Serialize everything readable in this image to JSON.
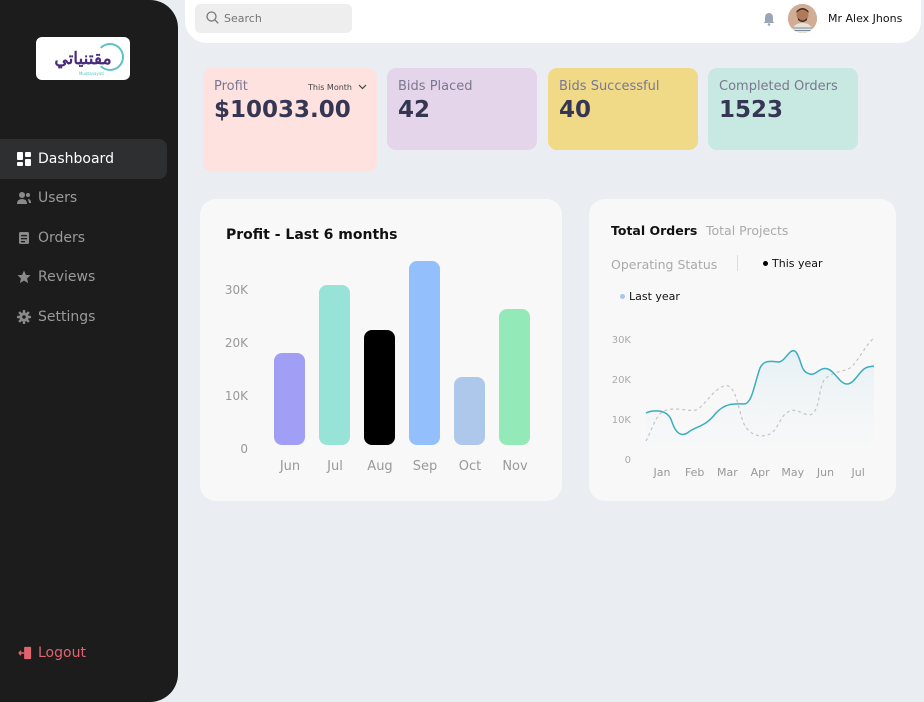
{
  "sidebar": {
    "logo": {
      "text": "مقتنياتي",
      "subtext": "Muqtanayati"
    },
    "items": [
      {
        "label": "Dashboard",
        "icon": "dashboard-icon",
        "active": true
      },
      {
        "label": "Users",
        "icon": "users-icon",
        "active": false
      },
      {
        "label": "Orders",
        "icon": "orders-icon",
        "active": false
      },
      {
        "label": "Reviews",
        "icon": "star-icon",
        "active": false
      },
      {
        "label": "Settings",
        "icon": "gear-icon",
        "active": false
      }
    ],
    "logout_label": "Logout"
  },
  "header": {
    "search_placeholder": "Search",
    "user_name": "Mr Alex Jhons",
    "bell_icon": "bell-icon"
  },
  "stats": [
    {
      "label": "Profit",
      "value": "$10033.00",
      "bg": "#fde2df",
      "dropdown": "This Month"
    },
    {
      "label": "Bids Placed",
      "value": "42",
      "bg": "#e5d5ea"
    },
    {
      "label": "Bids Successful",
      "value": "40",
      "bg": "#f0da88"
    },
    {
      "label": "Completed Orders",
      "value": "1523",
      "bg": "#c8e8e2"
    }
  ],
  "profit_panel": {
    "title": "Profit - Last 6 months"
  },
  "orders_panel": {
    "tabs": [
      {
        "label": "Total Orders",
        "active": true
      },
      {
        "label": "Total Projects",
        "active": false
      }
    ],
    "status_label": "Operating Status",
    "legend": [
      {
        "label": "This year",
        "color": "#000000"
      },
      {
        "label": "Last year",
        "color": "#a9c4ee"
      }
    ]
  },
  "chart_data": [
    {
      "type": "bar",
      "title": "Profit - Last 6 months",
      "categories": [
        "Jun",
        "Jul",
        "Aug",
        "Sep",
        "Oct",
        "Nov"
      ],
      "values": [
        17500,
        30500,
        22000,
        35000,
        13000,
        26000
      ],
      "colors": [
        "#a09ff5",
        "#98e3d7",
        "#000000",
        "#93bffc",
        "#aec8ec",
        "#93e9b8"
      ],
      "yticks": [
        "0",
        "10K",
        "20K",
        "30K"
      ],
      "ylim": [
        0,
        35000
      ],
      "xlabel": "",
      "ylabel": "",
      "grid": false
    },
    {
      "type": "line",
      "title": "Total Orders",
      "categories": [
        "Jan",
        "Feb",
        "Mar",
        "Apr",
        "May",
        "Jun",
        "Jul"
      ],
      "yticks": [
        "0",
        "10K",
        "20K",
        "30K"
      ],
      "ylim": [
        0,
        30000
      ],
      "series": [
        {
          "name": "This year",
          "style": "solid",
          "color": "#3aaebd",
          "values": [
            9000,
            8000,
            14000,
            24000,
            27000,
            22000,
            23000
          ]
        },
        {
          "name": "Last year",
          "style": "dashed",
          "color": "#c4c4c4",
          "values": [
            12500,
            12000,
            18000,
            7000,
            13000,
            23000,
            27000
          ]
        }
      ],
      "grid": false,
      "legend_position": "top"
    }
  ]
}
